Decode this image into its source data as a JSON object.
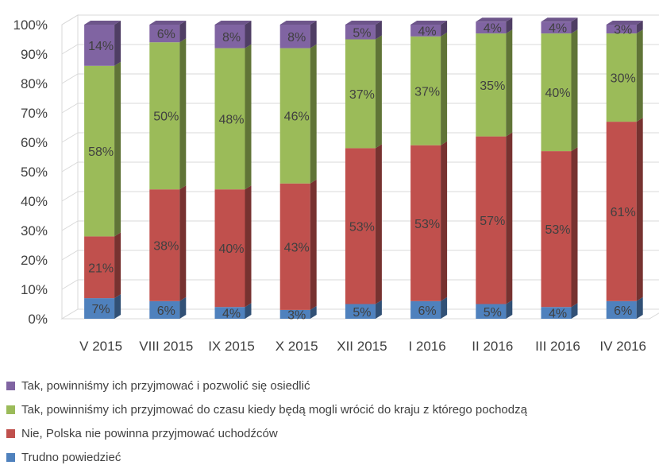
{
  "chart_data": {
    "type": "bar",
    "stacked": true,
    "normalized": true,
    "three_d": true,
    "categories": [
      "V 2015",
      "VIII 2015",
      "IX 2015",
      "X 2015",
      "XII 2015",
      "I 2016",
      "II 2016",
      "III 2016",
      "IV 2016"
    ],
    "y_ticks": [
      "0%",
      "10%",
      "20%",
      "30%",
      "40%",
      "50%",
      "60%",
      "70%",
      "80%",
      "90%",
      "100%"
    ],
    "ylim": [
      0,
      100
    ],
    "grid": true,
    "legend_position": "bottom",
    "series": [
      {
        "name": "Trudno powiedzieć",
        "color": "#4f81bd",
        "values": [
          7,
          6,
          4,
          3,
          5,
          6,
          5,
          4,
          6
        ],
        "labels": [
          "7%",
          "6%",
          "4%",
          "3%",
          "5%",
          "6%",
          "5%",
          "4%",
          "6%"
        ]
      },
      {
        "name": "Nie, Polska nie powinna przyjmować uchodźców",
        "color": "#c0504d",
        "values": [
          21,
          38,
          40,
          43,
          53,
          53,
          57,
          53,
          61
        ],
        "labels": [
          "21%",
          "38%",
          "40%",
          "43%",
          "53%",
          "53%",
          "57%",
          "53%",
          "61%"
        ]
      },
      {
        "name": "Tak, powinniśmy ich przyjmować do czasu kiedy będą mogli wrócić do kraju z którego pochodzą",
        "color": "#9bbb59",
        "values": [
          58,
          50,
          48,
          46,
          37,
          37,
          35,
          40,
          30
        ],
        "labels": [
          "58%",
          "50%",
          "48%",
          "46%",
          "37%",
          "37%",
          "35%",
          "40%",
          "30%"
        ]
      },
      {
        "name": "Tak, powinniśmy ich przyjmować i pozwolić się osiedlić",
        "color": "#8064a2",
        "values": [
          14,
          6,
          8,
          8,
          5,
          4,
          4,
          4,
          3
        ],
        "labels": [
          "14%",
          "6%",
          "8%",
          "8%",
          "5%",
          "4%",
          "4%",
          "4%",
          "3%"
        ]
      }
    ],
    "legend_order": [
      3,
      2,
      1,
      0
    ]
  }
}
